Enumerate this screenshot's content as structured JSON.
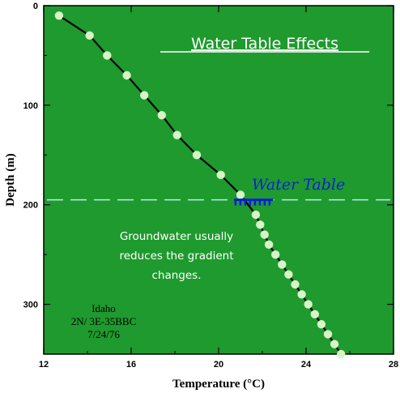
{
  "chart_data": {
    "type": "scatter",
    "title": "Water Table Effects",
    "xlabel": "Temperature (°C)",
    "ylabel": "Depth (m)",
    "xlim": [
      12,
      28
    ],
    "ylim": [
      0,
      350
    ],
    "y_inverted": true,
    "x_ticks": [
      12,
      16,
      20,
      24,
      28
    ],
    "y_ticks": [
      0,
      100,
      200,
      300
    ],
    "background_color": "#1f9a2e",
    "point_color": "#d6f5c6",
    "line_color": "#000000",
    "series": [
      {
        "x": [
          12.7,
          14.1,
          14.9,
          15.8,
          16.6,
          17.4,
          18.1,
          19.0,
          20.1,
          21.0,
          21.7,
          21.9,
          22.1,
          22.3,
          22.6,
          22.9,
          23.2,
          23.5,
          23.8,
          24.1,
          24.4,
          24.7,
          25.0,
          25.3,
          25.6
        ],
        "y": [
          10,
          30,
          50,
          70,
          90,
          110,
          130,
          150,
          170,
          190,
          210,
          220,
          230,
          240,
          250,
          260,
          270,
          280,
          290,
          300,
          310,
          320,
          330,
          340,
          350
        ]
      }
    ],
    "water_table": {
      "label": "Water Table",
      "depth": 195,
      "color": "#0a1fd6",
      "line_color": "#b9e9f2"
    },
    "annotations": {
      "note": [
        "Groundwater usually",
        "reduces the gradient",
        "changes."
      ],
      "location": [
        "Idaho",
        "2N/ 3E-35BBC",
        "7/24/76"
      ]
    }
  }
}
